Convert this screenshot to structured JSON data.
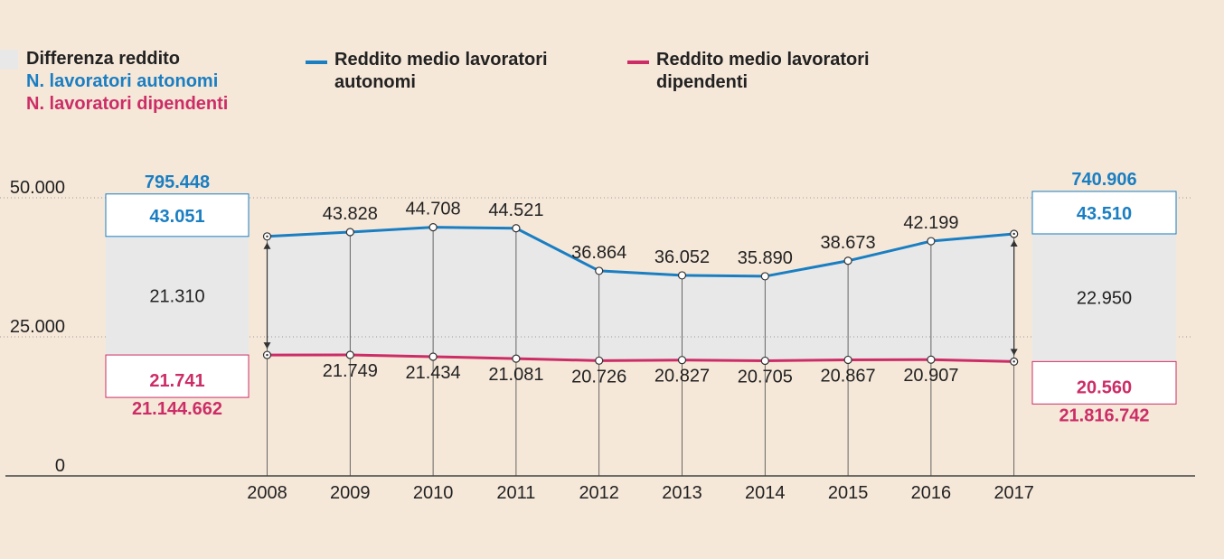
{
  "colors": {
    "background": "#f6e8d9",
    "autonomi": "#1a7ec2",
    "dipendenti": "#cc2d66",
    "band": "#e8e8e8",
    "axis": "#555555"
  },
  "legend": {
    "band": "Differenza reddito",
    "count_autonomi": "N. lavoratori autonomi",
    "count_dipendenti": "N. lavoratori dipendenti",
    "line_autonomi_l1": "Reddito medio lavoratori",
    "line_autonomi_l2": "autonomi",
    "line_dipendenti_l1": "Reddito medio lavoratori",
    "line_dipendenti_l2": "dipendenti"
  },
  "chart_data": {
    "type": "line",
    "categories": [
      "2008",
      "2009",
      "2010",
      "2011",
      "2012",
      "2013",
      "2014",
      "2015",
      "2016",
      "2017"
    ],
    "series": [
      {
        "name": "Reddito medio lavoratori autonomi",
        "values": [
          43051,
          43828,
          44708,
          44521,
          36864,
          36052,
          35890,
          38673,
          42199,
          43510
        ],
        "labels": [
          "43.051",
          "43.828",
          "44.708",
          "44.521",
          "36.864",
          "36.052",
          "35.890",
          "38.673",
          "42.199",
          "43.510"
        ]
      },
      {
        "name": "Reddito medio lavoratori dipendenti",
        "values": [
          21741,
          21749,
          21434,
          21081,
          20726,
          20827,
          20705,
          20867,
          20907,
          20560
        ],
        "labels": [
          "21.741",
          "21.749",
          "21.434",
          "21.081",
          "20.726",
          "20.827",
          "20.705",
          "20.867",
          "20.907",
          "20.560"
        ]
      }
    ],
    "ylim": [
      0,
      50000
    ],
    "yticks": [
      0,
      25000,
      50000
    ],
    "ytick_labels": [
      "0",
      "25.000",
      "50.000"
    ],
    "summary": [
      {
        "year": "2008",
        "count_autonomi": "795.448",
        "reddito_autonomi": "43.051",
        "difference": "21.310",
        "reddito_dipendenti": "21.741",
        "count_dipendenti": "21.144.662"
      },
      {
        "year": "2017",
        "count_autonomi": "740.906",
        "reddito_autonomi": "43.510",
        "difference": "22.950",
        "reddito_dipendenti": "20.560",
        "count_dipendenti": "21.816.742"
      }
    ]
  }
}
